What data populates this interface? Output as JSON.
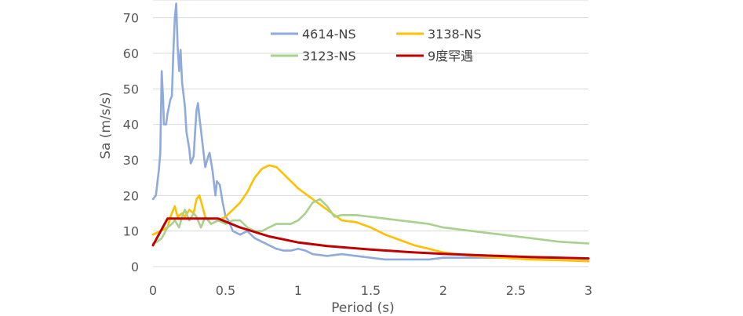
{
  "chart_data": {
    "type": "line",
    "title": "",
    "xlabel": "Period (s)",
    "ylabel": "Sa (m/s/s)",
    "xlim": [
      0,
      3
    ],
    "ylim": [
      0,
      75
    ],
    "x_ticks": [
      0,
      0.5,
      1,
      1.5,
      2,
      2.5,
      3
    ],
    "x_tick_labels": [
      "0",
      "0.5",
      "1",
      "1.5",
      "2",
      "2.5",
      "3"
    ],
    "y_ticks": [
      0,
      10,
      20,
      30,
      40,
      50,
      60,
      70
    ],
    "y_tick_labels": [
      "0",
      "10",
      "20",
      "30",
      "40",
      "50",
      "60",
      "70"
    ],
    "grid": "horizontal",
    "legend_position": "top-center",
    "series": [
      {
        "name": "4614-NS",
        "color": "#8FAADC",
        "points": [
          [
            0,
            19
          ],
          [
            0.02,
            20
          ],
          [
            0.04,
            27
          ],
          [
            0.05,
            32
          ],
          [
            0.06,
            55
          ],
          [
            0.07,
            47
          ],
          [
            0.075,
            40
          ],
          [
            0.09,
            40
          ],
          [
            0.1,
            43
          ],
          [
            0.12,
            47
          ],
          [
            0.13,
            48
          ],
          [
            0.14,
            60
          ],
          [
            0.15,
            70
          ],
          [
            0.16,
            74
          ],
          [
            0.17,
            62
          ],
          [
            0.18,
            55
          ],
          [
            0.19,
            61
          ],
          [
            0.2,
            52
          ],
          [
            0.22,
            45
          ],
          [
            0.23,
            38
          ],
          [
            0.25,
            33
          ],
          [
            0.26,
            29
          ],
          [
            0.28,
            31
          ],
          [
            0.29,
            38
          ],
          [
            0.3,
            44
          ],
          [
            0.31,
            46
          ],
          [
            0.32,
            42
          ],
          [
            0.34,
            35
          ],
          [
            0.36,
            28
          ],
          [
            0.38,
            31
          ],
          [
            0.39,
            32
          ],
          [
            0.41,
            27
          ],
          [
            0.43,
            20
          ],
          [
            0.44,
            24
          ],
          [
            0.46,
            23
          ],
          [
            0.48,
            18
          ],
          [
            0.5,
            14
          ],
          [
            0.52,
            13
          ],
          [
            0.55,
            10
          ],
          [
            0.6,
            9
          ],
          [
            0.65,
            10
          ],
          [
            0.7,
            8
          ],
          [
            0.75,
            7
          ],
          [
            0.8,
            6
          ],
          [
            0.85,
            5
          ],
          [
            0.9,
            4.5
          ],
          [
            0.95,
            4.5
          ],
          [
            1,
            5
          ],
          [
            1.05,
            4.5
          ],
          [
            1.1,
            3.5
          ],
          [
            1.2,
            3
          ],
          [
            1.3,
            3.5
          ],
          [
            1.4,
            3
          ],
          [
            1.5,
            2.5
          ],
          [
            1.6,
            2
          ],
          [
            1.7,
            2
          ],
          [
            1.8,
            2
          ],
          [
            1.9,
            2
          ],
          [
            2,
            2.5
          ],
          [
            2.2,
            2.5
          ],
          [
            2.4,
            2.5
          ],
          [
            2.6,
            2.5
          ],
          [
            2.8,
            2.5
          ],
          [
            3,
            2.3
          ]
        ]
      },
      {
        "name": "3138-NS",
        "color": "#FFC000",
        "points": [
          [
            0,
            9
          ],
          [
            0.05,
            10
          ],
          [
            0.1,
            11
          ],
          [
            0.12,
            14
          ],
          [
            0.15,
            17
          ],
          [
            0.17,
            14
          ],
          [
            0.2,
            15
          ],
          [
            0.22,
            14
          ],
          [
            0.25,
            16
          ],
          [
            0.28,
            15
          ],
          [
            0.3,
            19
          ],
          [
            0.32,
            20
          ],
          [
            0.34,
            17
          ],
          [
            0.36,
            14
          ],
          [
            0.4,
            12
          ],
          [
            0.45,
            13
          ],
          [
            0.5,
            14
          ],
          [
            0.55,
            16
          ],
          [
            0.6,
            18
          ],
          [
            0.65,
            21
          ],
          [
            0.7,
            25
          ],
          [
            0.75,
            27.5
          ],
          [
            0.8,
            28.5
          ],
          [
            0.85,
            28
          ],
          [
            0.9,
            26
          ],
          [
            0.95,
            24
          ],
          [
            1,
            22
          ],
          [
            1.1,
            19
          ],
          [
            1.2,
            16
          ],
          [
            1.3,
            13
          ],
          [
            1.4,
            12.5
          ],
          [
            1.5,
            11
          ],
          [
            1.6,
            9
          ],
          [
            1.7,
            7.5
          ],
          [
            1.8,
            6
          ],
          [
            1.9,
            5
          ],
          [
            2,
            4
          ],
          [
            2.2,
            3
          ],
          [
            2.4,
            2.5
          ],
          [
            2.6,
            2
          ],
          [
            2.8,
            1.8
          ],
          [
            3,
            1.5
          ]
        ]
      },
      {
        "name": "3123-NS",
        "color": "#A9D18E",
        "points": [
          [
            0,
            6.5
          ],
          [
            0.03,
            7
          ],
          [
            0.06,
            8
          ],
          [
            0.1,
            11
          ],
          [
            0.13,
            12
          ],
          [
            0.15,
            13
          ],
          [
            0.18,
            11
          ],
          [
            0.2,
            14
          ],
          [
            0.22,
            16
          ],
          [
            0.25,
            13
          ],
          [
            0.28,
            15
          ],
          [
            0.3,
            14
          ],
          [
            0.33,
            11
          ],
          [
            0.36,
            14
          ],
          [
            0.4,
            12
          ],
          [
            0.45,
            13
          ],
          [
            0.5,
            12
          ],
          [
            0.55,
            13
          ],
          [
            0.6,
            13
          ],
          [
            0.65,
            11
          ],
          [
            0.7,
            10
          ],
          [
            0.75,
            10
          ],
          [
            0.8,
            11
          ],
          [
            0.85,
            12
          ],
          [
            0.9,
            12
          ],
          [
            0.95,
            12
          ],
          [
            1,
            13
          ],
          [
            1.05,
            15
          ],
          [
            1.1,
            18
          ],
          [
            1.15,
            19
          ],
          [
            1.2,
            17
          ],
          [
            1.25,
            14
          ],
          [
            1.3,
            14.5
          ],
          [
            1.4,
            14.5
          ],
          [
            1.5,
            14
          ],
          [
            1.6,
            13.5
          ],
          [
            1.7,
            13
          ],
          [
            1.8,
            12.5
          ],
          [
            1.9,
            12
          ],
          [
            2,
            11
          ],
          [
            2.2,
            10
          ],
          [
            2.4,
            9
          ],
          [
            2.6,
            8
          ],
          [
            2.8,
            7
          ],
          [
            3,
            6.5
          ]
        ]
      },
      {
        "name": "9度罕遇",
        "color": "#C00000",
        "points": [
          [
            0,
            6
          ],
          [
            0.1,
            13.5
          ],
          [
            0.45,
            13.5
          ],
          [
            0.6,
            11
          ],
          [
            0.8,
            8.5
          ],
          [
            1,
            6.8
          ],
          [
            1.2,
            5.8
          ],
          [
            1.5,
            4.8
          ],
          [
            1.8,
            4
          ],
          [
            2,
            3.6
          ],
          [
            2.3,
            3.1
          ],
          [
            2.6,
            2.7
          ],
          [
            3,
            2.3
          ]
        ]
      }
    ]
  }
}
